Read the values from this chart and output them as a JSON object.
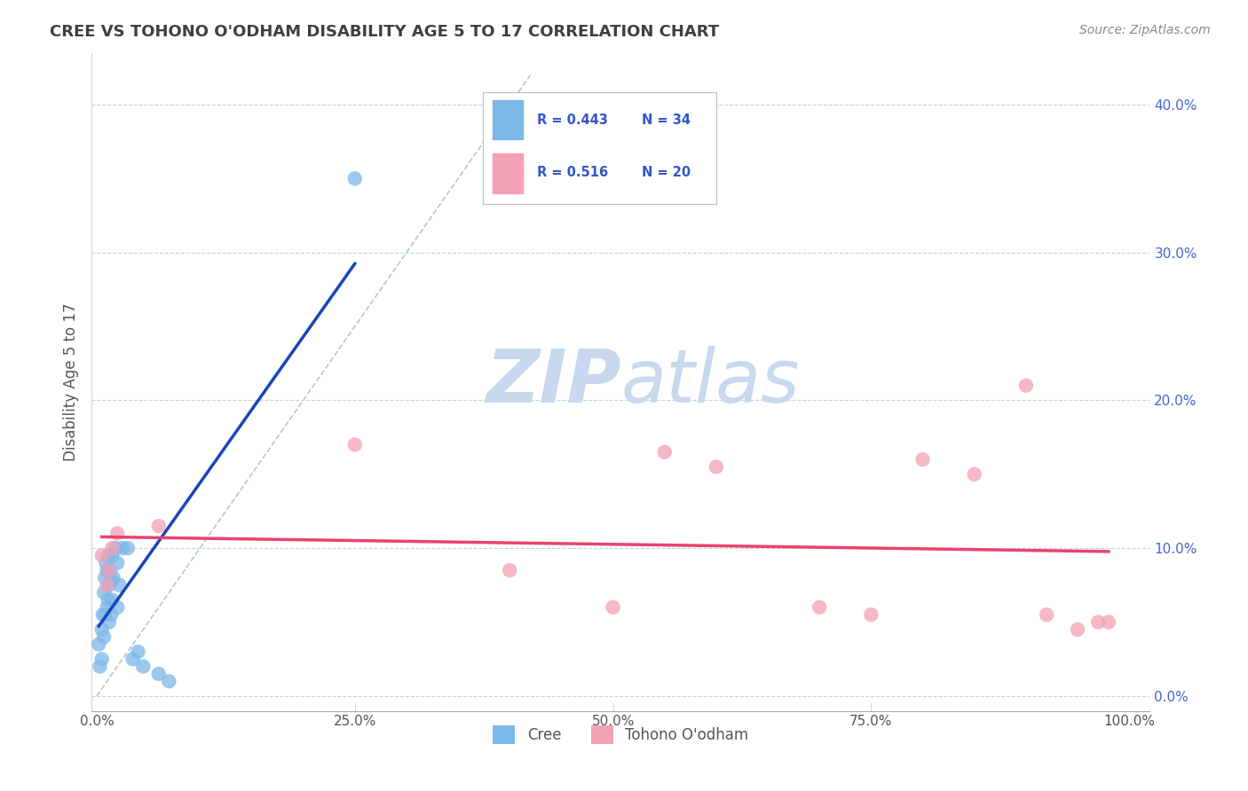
{
  "title": "CREE VS TOHONO O'ODHAM DISABILITY AGE 5 TO 17 CORRELATION CHART",
  "source": "Source: ZipAtlas.com",
  "ylabel": "Disability Age 5 to 17",
  "xlim": [
    -0.005,
    1.02
  ],
  "ylim": [
    -0.01,
    0.435
  ],
  "xticks": [
    0.0,
    0.25,
    0.5,
    0.75,
    1.0
  ],
  "xtick_labels": [
    "0.0%",
    "25.0%",
    "50.0%",
    "75.0%",
    "100.0%"
  ],
  "yticks": [
    0.0,
    0.1,
    0.2,
    0.3,
    0.4
  ],
  "ytick_labels": [
    "0.0%",
    "10.0%",
    "20.0%",
    "30.0%",
    "40.0%"
  ],
  "cree_R": 0.443,
  "cree_N": 34,
  "tohono_R": 0.516,
  "tohono_N": 20,
  "cree_color": "#7db8e8",
  "tohono_color": "#f4a0b5",
  "cree_line_color": "#1a44bb",
  "tohono_line_color": "#e8436e",
  "background_color": "#ffffff",
  "grid_color": "#c8d0e0",
  "ref_line_color": "#aac0d8",
  "title_color": "#404040",
  "source_color": "#888888",
  "legend_label_color": "#3355cc",
  "ytick_color": "#4466cc",
  "xtick_color": "#555555",
  "cree_x": [
    0.002,
    0.003,
    0.005,
    0.005,
    0.006,
    0.007,
    0.007,
    0.008,
    0.008,
    0.009,
    0.01,
    0.01,
    0.011,
    0.011,
    0.012,
    0.012,
    0.013,
    0.014,
    0.014,
    0.015,
    0.015,
    0.016,
    0.018,
    0.02,
    0.02,
    0.022,
    0.025,
    0.03,
    0.035,
    0.04,
    0.045,
    0.06,
    0.07,
    0.25
  ],
  "cree_y": [
    0.035,
    0.02,
    0.045,
    0.025,
    0.055,
    0.07,
    0.04,
    0.08,
    0.055,
    0.09,
    0.085,
    0.06,
    0.095,
    0.065,
    0.075,
    0.05,
    0.085,
    0.078,
    0.055,
    0.095,
    0.065,
    0.08,
    0.1,
    0.09,
    0.06,
    0.075,
    0.1,
    0.1,
    0.025,
    0.03,
    0.02,
    0.015,
    0.01,
    0.35
  ],
  "tohono_x": [
    0.005,
    0.01,
    0.012,
    0.015,
    0.02,
    0.06,
    0.25,
    0.4,
    0.5,
    0.55,
    0.6,
    0.7,
    0.75,
    0.8,
    0.85,
    0.9,
    0.92,
    0.95,
    0.97,
    0.98
  ],
  "tohono_y": [
    0.095,
    0.075,
    0.085,
    0.1,
    0.11,
    0.115,
    0.17,
    0.085,
    0.06,
    0.165,
    0.155,
    0.06,
    0.055,
    0.16,
    0.15,
    0.21,
    0.055,
    0.045,
    0.05,
    0.05
  ],
  "fig_width": 14.06,
  "fig_height": 8.92,
  "dpi": 100
}
